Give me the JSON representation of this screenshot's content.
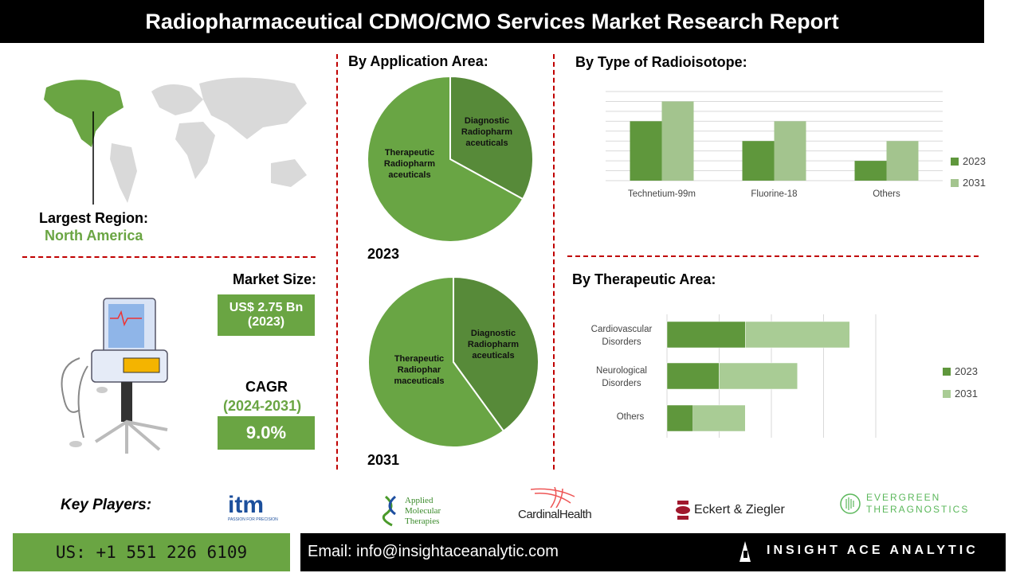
{
  "title": "Radiopharmaceutical CDMO/CMO Services Market Research Report",
  "region": {
    "label": "Largest Region:",
    "value": "North America"
  },
  "market_size": {
    "label": "Market Size:",
    "value": "US$ 2.75 Bn",
    "year": "(2023)"
  },
  "cagr": {
    "label": "CAGR",
    "period": "(2024-2031)",
    "value": "9.0%"
  },
  "colors": {
    "dark_green": "#5a8a3a",
    "green": "#6aa543",
    "light_green": "#a5c590",
    "red_dash": "#c00000"
  },
  "chart_data": [
    {
      "type": "pie",
      "title": "By Application Area:",
      "caption": "2023",
      "labels": [
        "Diagnostic Radiopharm aceuticals",
        "Therapeutic Radiopharm aceuticals"
      ],
      "values": [
        33,
        67
      ]
    },
    {
      "type": "pie",
      "caption": "2031",
      "labels": [
        "Diagnostic Radiopharm aceuticals",
        "Therapeutic Radiophar maceuticals"
      ],
      "values": [
        40,
        60
      ]
    },
    {
      "type": "bar",
      "title": "By Type of Radioisotope:",
      "categories": [
        "Technetium-99m",
        "Fluorine-18",
        "Others"
      ],
      "series": [
        {
          "name": "2023",
          "values": [
            6,
            4,
            2
          ]
        },
        {
          "name": "2031",
          "values": [
            8,
            6,
            4
          ]
        }
      ],
      "ylim": [
        0,
        9
      ],
      "grid": true,
      "legend": "right"
    },
    {
      "type": "bar",
      "orientation": "horizontal",
      "stacked": true,
      "title": "By Therapeutic Area:",
      "categories": [
        "Cardiovascular Disorders",
        "Neurological Disorders",
        "Others"
      ],
      "series": [
        {
          "name": "2023",
          "values": [
            3,
            2,
            1
          ]
        },
        {
          "name": "2031",
          "values": [
            4,
            3,
            2
          ]
        }
      ],
      "xlim": [
        0,
        8
      ],
      "grid": true,
      "legend": "right"
    }
  ],
  "key_players": {
    "label": "Key Players:",
    "logos": [
      "itm",
      "Applied Molecular Therapies",
      "CardinalHealth",
      "Eckert & Ziegler",
      "EVERGREEN THERAGNOSTICS"
    ],
    "itm_tagline": "PASSION FOR PRECISION"
  },
  "footer": {
    "phone": "US: +1 551 226 6109",
    "email": "Email: info@insightaceanalytic.com",
    "brand": "INSIGHT ACE ANALYTIC"
  }
}
